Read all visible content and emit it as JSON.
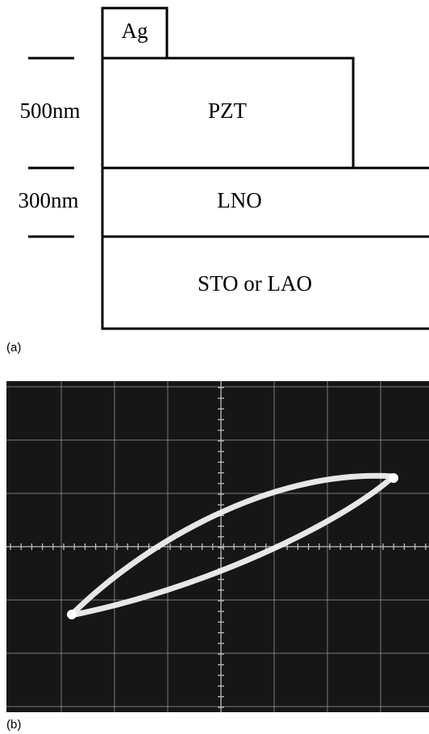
{
  "panel_a": {
    "layers": {
      "top_electrode": "Ag",
      "film": "PZT",
      "bottom_electrode": "LNO",
      "substrate": "STO or LAO"
    },
    "thickness_labels": {
      "film": "500nm",
      "bottom_electrode": "300nm"
    },
    "label": "(a)"
  },
  "panel_b": {
    "label": "(b)"
  }
}
